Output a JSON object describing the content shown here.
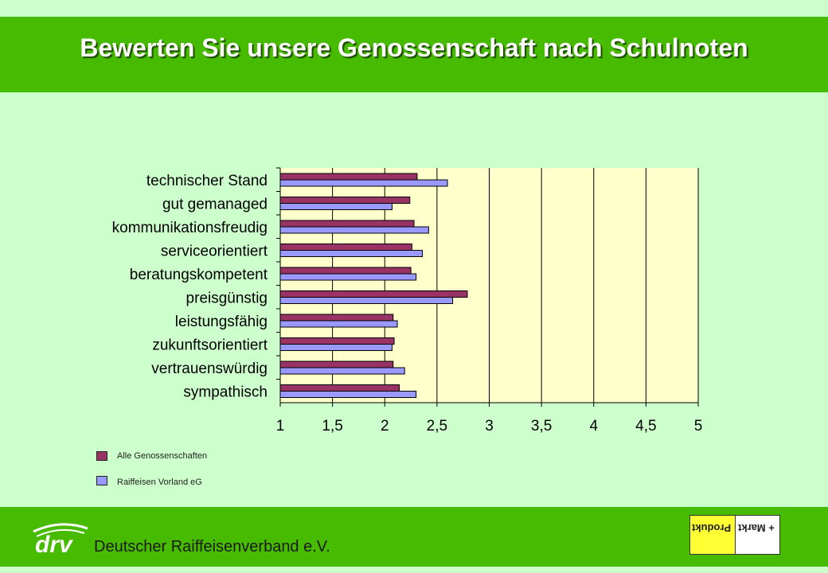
{
  "title": "Bewerten Sie unsere Genossenschaft nach Schulnoten",
  "footer": {
    "organization": "Deutscher Raiffeisenverband e.V.",
    "drv_logo_text": "drv",
    "pm_logo_left": "Produkt",
    "pm_logo_right": "+ Markt"
  },
  "colors": {
    "background": "#ccffcc",
    "header_band": "#47bb00",
    "plot_area": "#ffffcc",
    "series_alle": "#993366",
    "series_raiffeisen": "#9999ff"
  },
  "chart_data": {
    "type": "bar",
    "orientation": "horizontal",
    "categories": [
      "technischer Stand",
      "gut gemanaged",
      "kommunikationsfreudig",
      "serviceorientiert",
      "beratungskompetent",
      "preisgünstig",
      "leistungsfähig",
      "zukunftsorientiert",
      "vertrauenswürdig",
      "sympathisch"
    ],
    "series": [
      {
        "name": "Alle Genossenschaften",
        "values": [
          2.31,
          2.24,
          2.28,
          2.26,
          2.25,
          2.79,
          2.08,
          2.09,
          2.08,
          2.14
        ]
      },
      {
        "name": "Raiffeisen Vorland eG",
        "values": [
          2.6,
          2.07,
          2.42,
          2.36,
          2.3,
          2.65,
          2.12,
          2.07,
          2.19,
          2.3
        ]
      }
    ],
    "tick_labels": [
      "1",
      "1,5",
      "2",
      "2,5",
      "3",
      "3,5",
      "4",
      "4,5",
      "5"
    ],
    "xlim": [
      1,
      5
    ],
    "grid": true,
    "legend_position": "bottom-left"
  }
}
